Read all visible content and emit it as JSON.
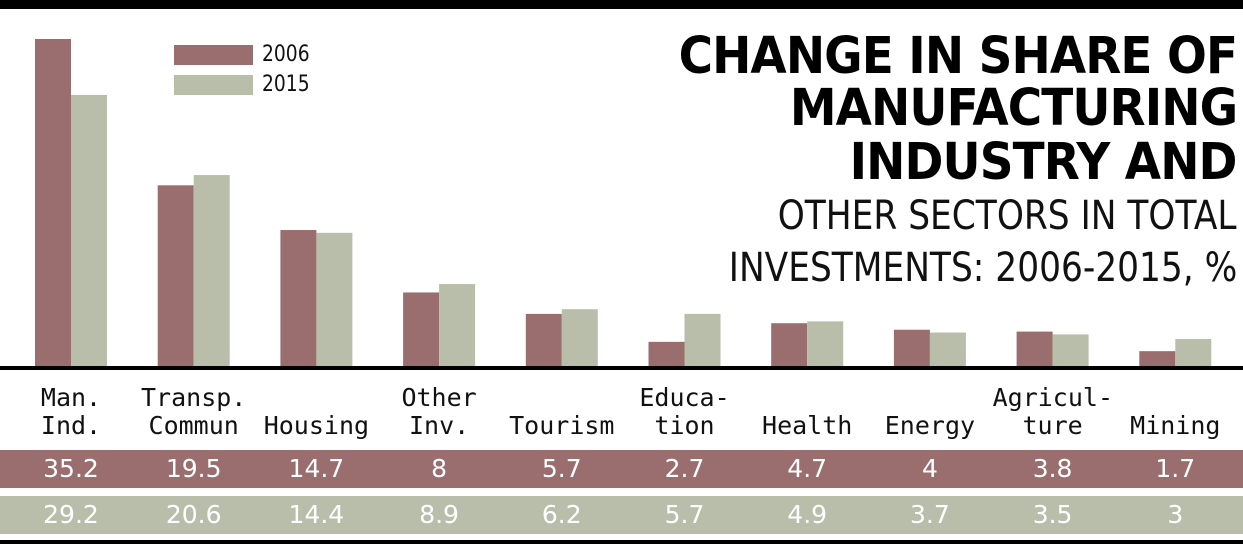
{
  "title_lines_bold": [
    "CHANGE IN SHARE OF",
    "MANUFACTURING",
    "INDUSTRY AND"
  ],
  "title_lines_light": [
    "OTHER SECTORS IN TOTAL",
    "INVESTMENTS: 2006-2015, %"
  ],
  "legend": [
    {
      "label": "2006",
      "color": "#9a6e6e"
    },
    {
      "label": "2015",
      "color": "#b9beab"
    }
  ],
  "categories": [
    "Man.\nInd.",
    "Transp.\nCommun",
    "Housing",
    "Other\nInv.",
    "Tourism",
    "Educa-\ntion",
    "Health",
    "Energy",
    "Agricul-\nture",
    "Mining"
  ],
  "table": {
    "row_2006": [
      "35.2",
      "19.5",
      "14.7",
      "8",
      "5.7",
      "2.7",
      "4.7",
      "4",
      "3.8",
      "1.7"
    ],
    "row_2015": [
      "29.2",
      "20.6",
      "14.4",
      "8.9",
      "6.2",
      "5.7",
      "4.9",
      "3.7",
      "3.5",
      "3"
    ]
  },
  "chart_data": {
    "type": "bar",
    "title": "CHANGE IN SHARE OF MANUFACTURING INDUSTRY AND OTHER SECTORS IN TOTAL INVESTMENTS: 2006-2015, %",
    "categories": [
      "Man. Ind.",
      "Transp. Commun",
      "Housing",
      "Other Inv.",
      "Tourism",
      "Education",
      "Health",
      "Energy",
      "Agriculture",
      "Mining"
    ],
    "series": [
      {
        "name": "2006",
        "values": [
          35.2,
          19.5,
          14.7,
          8,
          5.7,
          2.7,
          4.7,
          4,
          3.8,
          1.7
        ],
        "color": "#9a6e6e"
      },
      {
        "name": "2015",
        "values": [
          29.2,
          20.6,
          14.4,
          8.9,
          6.2,
          5.7,
          4.9,
          3.7,
          3.5,
          3
        ],
        "color": "#b9beab"
      }
    ],
    "ylim": [
      0,
      35.2
    ],
    "grid": false,
    "legend_position": "top-left"
  }
}
